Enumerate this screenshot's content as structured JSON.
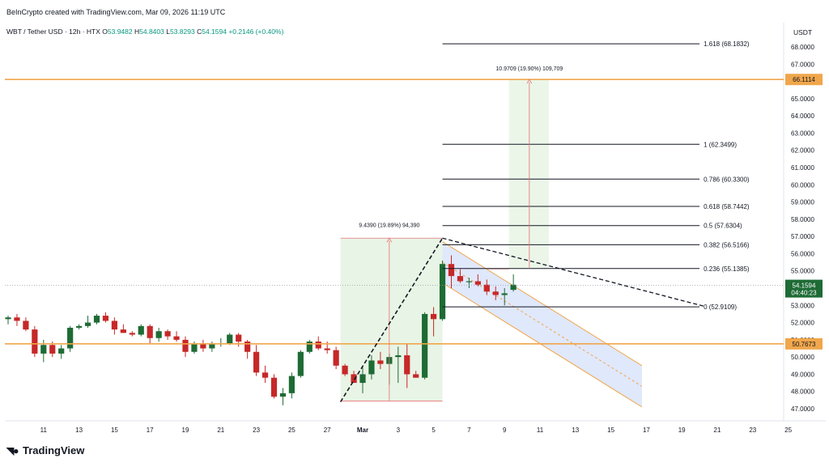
{
  "header": {
    "credit": "BeInCrypto created with TradingView.com, Mar 09, 2026 11:19 UTC",
    "symbol": "WBT / Tether USD · 12h · HTX",
    "open_label": "O",
    "open": "53.9482",
    "high_label": "H",
    "high": "54.8403",
    "low_label": "L",
    "low": "53.8293",
    "close_label": "C",
    "close": "54.1594",
    "change": "+0.2146 (+0.40%)",
    "unit": "USDT"
  },
  "footer": {
    "brand": "TradingView",
    "logo_icon": "tradingview-logo-icon"
  },
  "colors": {
    "up": "#1e6b35",
    "down": "#c62828",
    "level": "#f0a64b",
    "price_badge": "#1e6b35",
    "fib": "#131722",
    "channel_fill": "#dbe4fb",
    "projection_fill": "#e8f4e5",
    "measure": "#e57373"
  },
  "chart_data": {
    "type": "candlestick",
    "interval": "12h",
    "ylim": [
      46.6,
      69.0
    ],
    "y_ticks": [
      "47.0000",
      "48.0000",
      "49.0000",
      "50.0000",
      "51.0000",
      "52.0000",
      "53.0000",
      "54.0000",
      "55.0000",
      "56.0000",
      "57.0000",
      "58.0000",
      "59.0000",
      "60.0000",
      "61.0000",
      "62.0000",
      "63.0000",
      "64.0000",
      "65.0000",
      "66.0000",
      "67.0000",
      "68.0000"
    ],
    "x_ticks": [
      {
        "label": "11",
        "i": 4
      },
      {
        "label": "13",
        "i": 8
      },
      {
        "label": "15",
        "i": 12
      },
      {
        "label": "17",
        "i": 16
      },
      {
        "label": "19",
        "i": 20
      },
      {
        "label": "21",
        "i": 24
      },
      {
        "label": "23",
        "i": 28
      },
      {
        "label": "25",
        "i": 32
      },
      {
        "label": "27",
        "i": 36
      },
      {
        "label": "Mar",
        "i": 40
      },
      {
        "label": "3",
        "i": 44
      },
      {
        "label": "5",
        "i": 48
      },
      {
        "label": "7",
        "i": 52
      },
      {
        "label": "9",
        "i": 56
      },
      {
        "label": "11",
        "i": 60
      },
      {
        "label": "13",
        "i": 64
      },
      {
        "label": "15",
        "i": 68
      },
      {
        "label": "17",
        "i": 72
      },
      {
        "label": "19",
        "i": 76
      },
      {
        "label": "21",
        "i": 80
      },
      {
        "label": "23",
        "i": 84
      },
      {
        "label": "25",
        "i": 88
      }
    ],
    "candles": [
      [
        52.2,
        52.4,
        51.9,
        52.3
      ],
      [
        52.3,
        52.5,
        51.8,
        52.1
      ],
      [
        52.1,
        52.3,
        51.5,
        51.6
      ],
      [
        51.6,
        51.8,
        50.0,
        50.2
      ],
      [
        50.2,
        51.0,
        49.7,
        50.7
      ],
      [
        50.7,
        50.9,
        50.0,
        50.2
      ],
      [
        50.2,
        50.7,
        49.9,
        50.5
      ],
      [
        50.5,
        51.8,
        50.3,
        51.7
      ],
      [
        51.7,
        51.9,
        51.6,
        51.8
      ],
      [
        51.8,
        52.4,
        51.7,
        52.0
      ],
      [
        52.0,
        52.5,
        51.9,
        52.4
      ],
      [
        52.4,
        52.6,
        52.0,
        52.1
      ],
      [
        52.1,
        52.3,
        51.3,
        51.6
      ],
      [
        51.6,
        51.9,
        51.4,
        51.4
      ],
      [
        51.4,
        51.5,
        51.2,
        51.3
      ],
      [
        51.3,
        51.9,
        51.2,
        51.8
      ],
      [
        51.8,
        51.9,
        50.8,
        51.1
      ],
      [
        51.1,
        51.7,
        50.9,
        51.5
      ],
      [
        51.5,
        51.6,
        51.0,
        51.2
      ],
      [
        51.2,
        51.5,
        50.9,
        51.0
      ],
      [
        51.0,
        51.2,
        50.0,
        50.3
      ],
      [
        50.3,
        50.9,
        50.2,
        50.8
      ],
      [
        50.8,
        51.0,
        50.3,
        50.5
      ],
      [
        50.5,
        50.9,
        50.3,
        50.8
      ],
      [
        50.8,
        51.1,
        50.6,
        50.8
      ],
      [
        50.8,
        51.4,
        50.7,
        51.3
      ],
      [
        51.3,
        51.4,
        50.6,
        50.9
      ],
      [
        50.9,
        51.0,
        49.9,
        50.3
      ],
      [
        50.3,
        50.7,
        48.9,
        49.1
      ],
      [
        49.1,
        49.5,
        48.5,
        48.8
      ],
      [
        48.8,
        49.0,
        47.6,
        47.7
      ],
      [
        47.7,
        48.2,
        47.2,
        47.9
      ],
      [
        47.9,
        49.1,
        47.6,
        48.9
      ],
      [
        48.9,
        50.4,
        48.8,
        50.3
      ],
      [
        50.3,
        51.0,
        50.2,
        50.9
      ],
      [
        50.9,
        51.2,
        50.4,
        50.5
      ],
      [
        50.5,
        50.9,
        50.2,
        50.4
      ],
      [
        50.4,
        50.6,
        49.3,
        49.5
      ],
      [
        49.5,
        49.6,
        48.9,
        49.0
      ],
      [
        49.0,
        49.2,
        48.5,
        48.5
      ],
      [
        48.5,
        49.4,
        47.9,
        49.0
      ],
      [
        49.0,
        50.1,
        48.7,
        49.8
      ],
      [
        49.8,
        50.3,
        49.3,
        49.6
      ],
      [
        49.6,
        50.2,
        48.4,
        50.0
      ],
      [
        50.0,
        50.6,
        48.5,
        50.1
      ],
      [
        50.1,
        50.8,
        48.2,
        49.0
      ],
      [
        49.0,
        49.2,
        48.8,
        48.8
      ],
      [
        48.8,
        52.6,
        48.7,
        52.5
      ],
      [
        52.5,
        52.9,
        51.2,
        52.2
      ],
      [
        52.2,
        55.6,
        52.1,
        55.4
      ],
      [
        55.4,
        55.9,
        54.0,
        54.7
      ],
      [
        54.7,
        55.1,
        54.3,
        54.4
      ],
      [
        54.4,
        54.6,
        54.0,
        54.4
      ],
      [
        54.4,
        54.8,
        54.1,
        54.2
      ],
      [
        54.2,
        54.5,
        53.6,
        53.8
      ],
      [
        53.8,
        54.1,
        53.3,
        53.6
      ],
      [
        53.6,
        54.0,
        53.0,
        53.7
      ],
      [
        53.9,
        54.8,
        53.8,
        54.2
      ]
    ]
  },
  "annotations": {
    "levels": [
      {
        "value": 66.1114,
        "label": "66.1114"
      },
      {
        "value": 50.7673,
        "label": "50.7673"
      }
    ],
    "current_price": {
      "label": "54.1594",
      "timer": "04:40:23"
    },
    "fib_levels": [
      {
        "value": 68.1832,
        "label": "1.618 (68.1832)"
      },
      {
        "value": 62.3499,
        "label": "1 (62.3499)"
      },
      {
        "value": 60.33,
        "label": "0.786 (60.3300)"
      },
      {
        "value": 58.7442,
        "label": "0.618 (58.7442)"
      },
      {
        "value": 57.6304,
        "label": "0.5 (57.6304)"
      },
      {
        "value": 56.5166,
        "label": "0.382 (56.5166)"
      },
      {
        "value": 55.1385,
        "label": "0.236 (55.1385)"
      },
      {
        "value": 52.9109,
        "label": "0 (52.9109)"
      }
    ],
    "measure_up": {
      "label": "9.4390 (19.89%) 94,390",
      "from": 47.45,
      "to": 56.9
    },
    "measure_target": {
      "label": "10.9709 (19.90%) 109,709",
      "from": 55.1385,
      "to": 66.1114
    }
  }
}
